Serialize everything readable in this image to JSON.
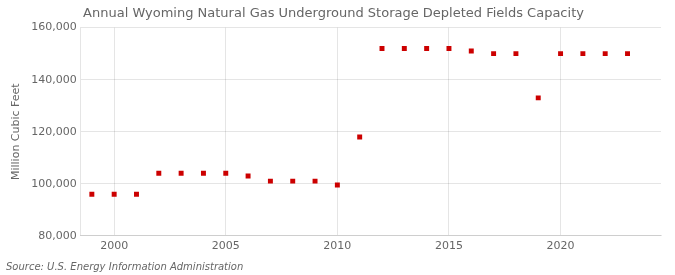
{
  "chart_data": {
    "type": "scatter",
    "title": "Annual Wyoming Natural Gas Underground Storage Depleted Fields Capacity",
    "ylabel": "Million Cubic Feet",
    "annotation": "Source: U.S. Energy Information Administration",
    "x": [
      1999,
      2000,
      2001,
      2002,
      2003,
      2004,
      2005,
      2006,
      2007,
      2008,
      2009,
      2010,
      2011,
      2012,
      2013,
      2014,
      2015,
      2016,
      2017,
      2018,
      2019,
      2020,
      2021,
      2022,
      2023
    ],
    "values": [
      96000,
      96000,
      96000,
      104000,
      104000,
      104000,
      104000,
      103000,
      101000,
      101000,
      101000,
      99500,
      118000,
      152000,
      152000,
      152000,
      152000,
      151000,
      150000,
      150000,
      133000,
      150000,
      150000,
      150000,
      150000
    ],
    "color": "#cc0000",
    "marker": "square",
    "xlim": [
      1998.5,
      2024.5
    ],
    "xticks": [
      2000,
      2005,
      2010,
      2015,
      2020
    ],
    "ylim": [
      80000,
      160000
    ],
    "yticks": [
      {
        "value": 80000,
        "label": "80,000"
      },
      {
        "value": 100000,
        "label": "100,000"
      },
      {
        "value": 120000,
        "label": "120,000"
      },
      {
        "value": 140000,
        "label": "140,000"
      },
      {
        "value": 160000,
        "label": "160,000"
      }
    ],
    "grid": true
  }
}
